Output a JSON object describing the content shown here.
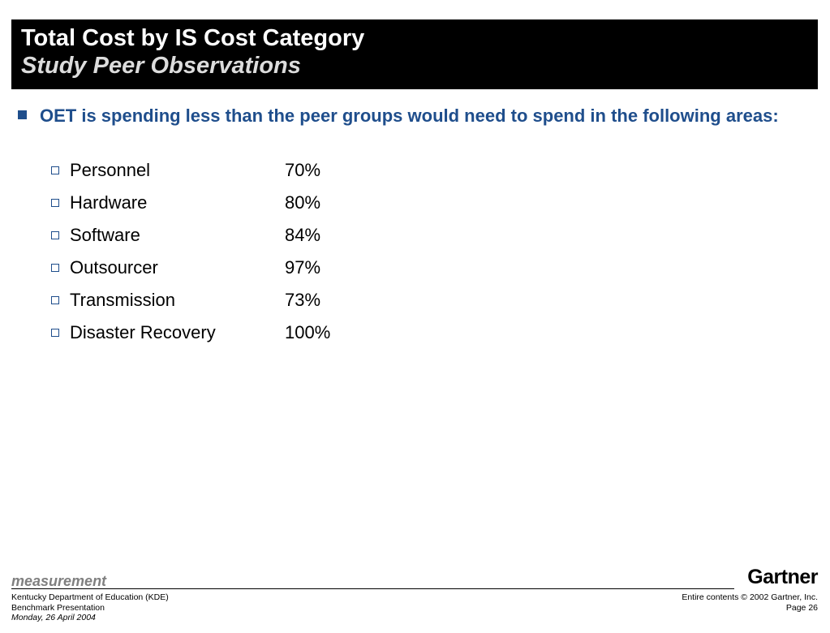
{
  "header": {
    "title": "Total Cost by IS Cost Category",
    "subtitle": "Study Peer Observations"
  },
  "main_bullet": "OET is spending less than the peer groups would need to spend in the following areas:",
  "items": [
    {
      "label": "Personnel",
      "value": "70%"
    },
    {
      "label": "Hardware",
      "value": "80%"
    },
    {
      "label": "Software",
      "value": "84%"
    },
    {
      "label": "Outsourcer",
      "value": "97%"
    },
    {
      "label": "Transmission",
      "value": "73%"
    },
    {
      "label": "Disaster Recovery",
      "value": "100%"
    }
  ],
  "footer": {
    "section_label": "measurement",
    "logo_text": "Gartner",
    "left_line1": "Kentucky Department of Education (KDE)",
    "left_line2": "Benchmark Presentation",
    "left_date": "Monday, 26 April 2004",
    "right_copyright": "Entire contents © 2002 Gartner, Inc.",
    "right_page": "Page 26"
  },
  "colors": {
    "title_background": "#000000",
    "accent_blue": "#1f4e8c",
    "section_label_gray": "#808080"
  }
}
